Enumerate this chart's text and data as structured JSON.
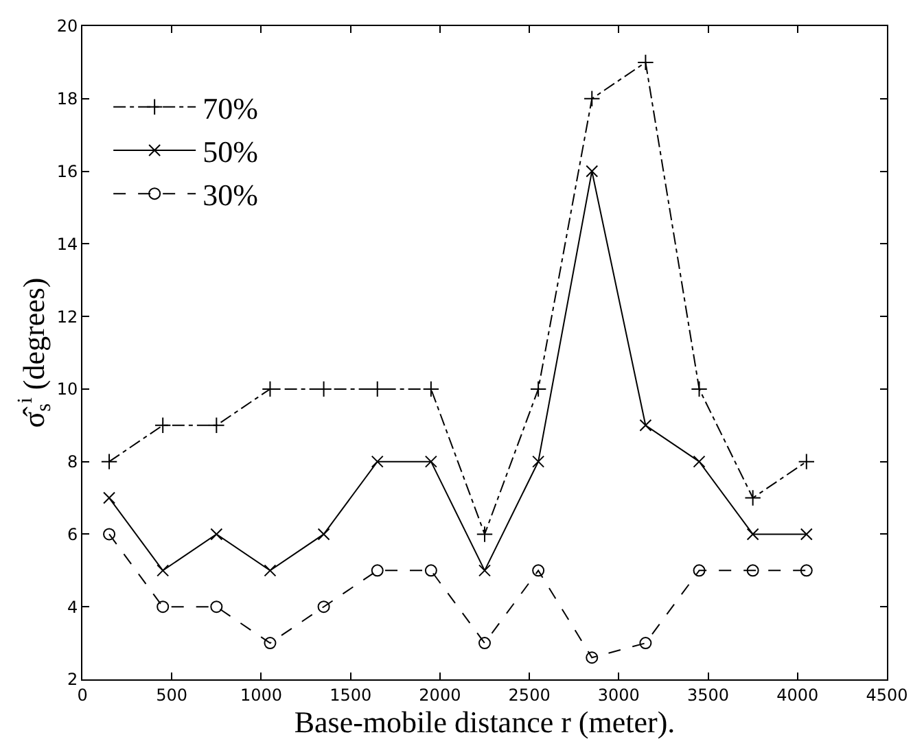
{
  "chart_data": {
    "type": "line",
    "xlabel": "Base-mobile distance r (meter).",
    "ylabel": "σ̂$_{s}$$^{i}$ (degrees)",
    "x": [
      150,
      450,
      750,
      1050,
      1350,
      1650,
      1950,
      2250,
      2550,
      2850,
      3150,
      3450,
      3750,
      4050
    ],
    "series": [
      {
        "name": "70%",
        "color": "#000000",
        "line_style": "dashdot",
        "marker": "plus",
        "values": [
          8,
          9,
          9,
          10,
          10,
          10,
          10,
          6,
          10,
          18,
          19,
          10,
          7,
          8
        ]
      },
      {
        "name": "50%",
        "color": "#000000",
        "line_style": "solid",
        "marker": "cross",
        "values": [
          7,
          5,
          6,
          5,
          6,
          8,
          8,
          5,
          8,
          16,
          9,
          8,
          6,
          6
        ]
      },
      {
        "name": "30%",
        "color": "#000000",
        "line_style": "dashed",
        "marker": "circle",
        "values": [
          6,
          4,
          4,
          3,
          4,
          5,
          5,
          3,
          5,
          2.6,
          3,
          5,
          5,
          5
        ]
      }
    ],
    "xlim": [
      0,
      4500
    ],
    "xticks": [
      0,
      500,
      1000,
      1500,
      2000,
      2500,
      3000,
      3500,
      4000,
      4500
    ],
    "ylim": [
      2,
      20
    ],
    "yticks": [
      2,
      4,
      6,
      8,
      10,
      12,
      14,
      16,
      18,
      20
    ],
    "grid": false,
    "legend": "top left"
  }
}
